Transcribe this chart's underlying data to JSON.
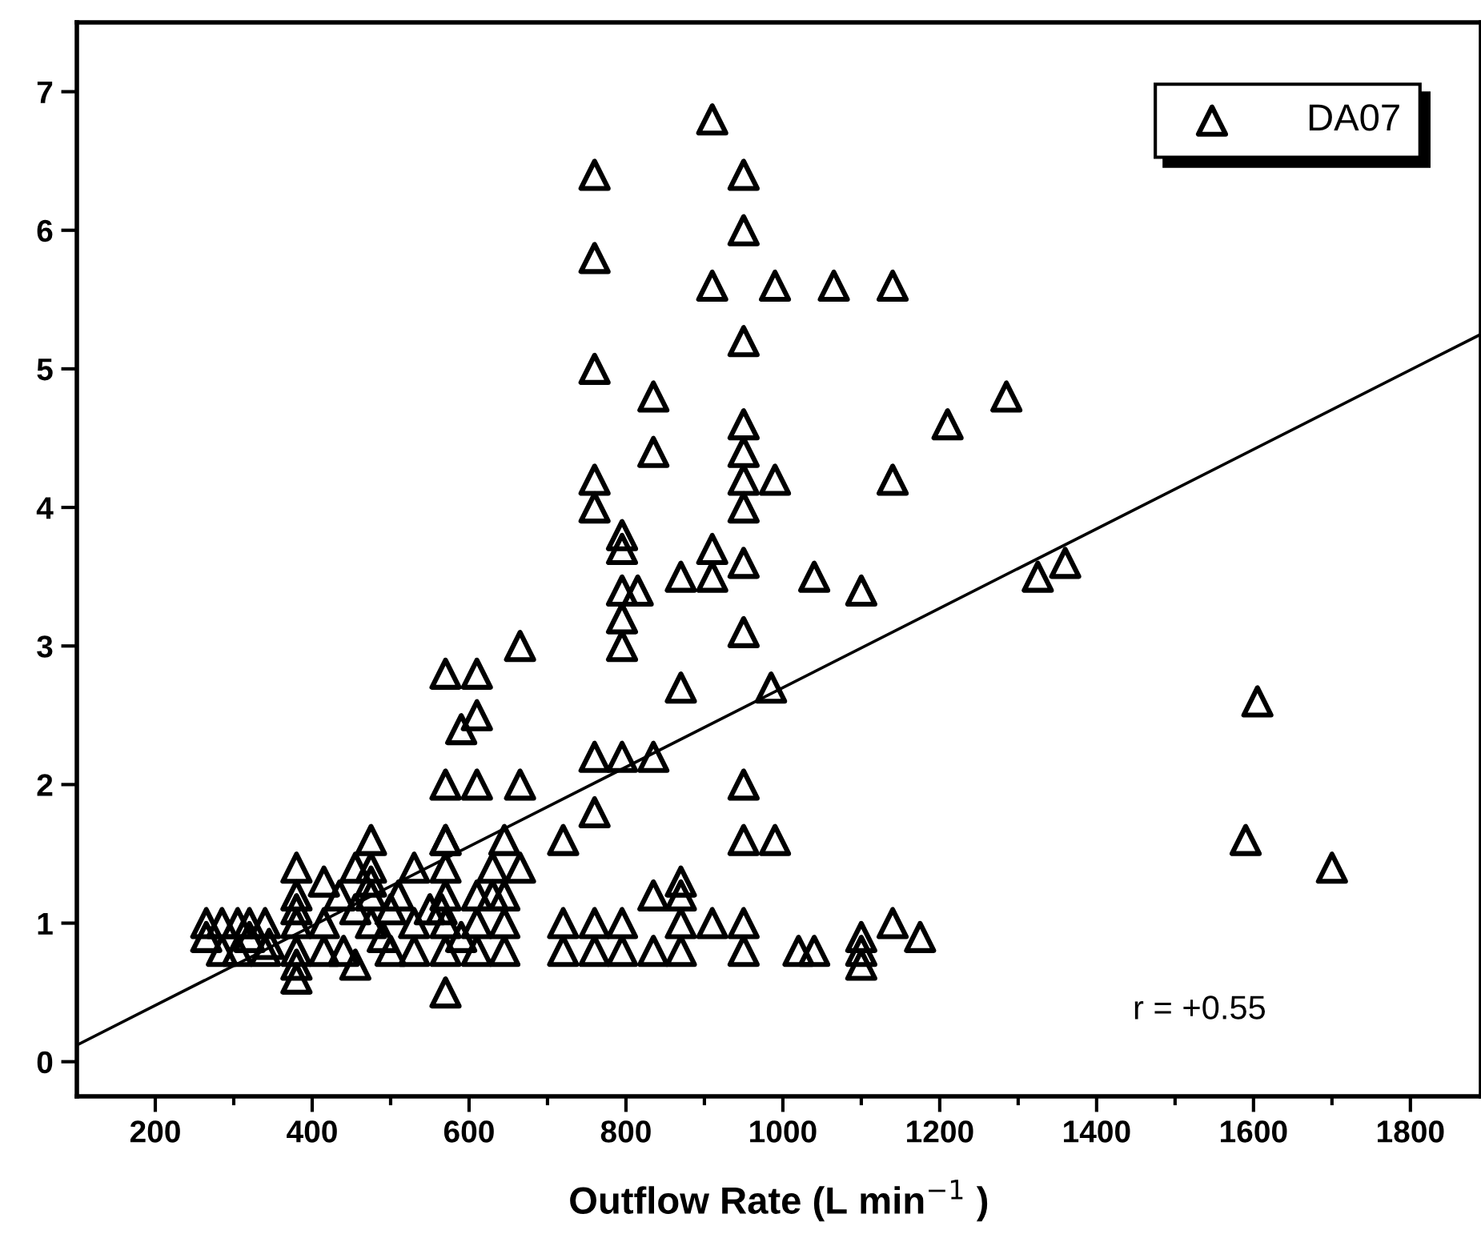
{
  "chart_data": {
    "type": "scatter",
    "xlabel": "Outflow Rate (L min$^{−1}$ )",
    "xlim": [
      100,
      1890
    ],
    "ylim": [
      -0.25,
      7.5
    ],
    "xticks": [
      200,
      {
        "value": 300,
        "label": null
      },
      400,
      {
        "value": 500,
        "label": null
      },
      600,
      {
        "value": 700,
        "label": null
      },
      800,
      {
        "value": 900,
        "label": null
      },
      1000,
      {
        "value": 1100,
        "label": null
      },
      1200,
      {
        "value": 1300,
        "label": null
      },
      1400,
      {
        "value": 1500,
        "label": null
      },
      1600,
      {
        "value": 1700,
        "label": null
      },
      1800
    ],
    "yticks": [
      0,
      1,
      2,
      3,
      4,
      5,
      6,
      7
    ],
    "grid": false,
    "legend": "top right",
    "marker": "triangle",
    "annotations": [
      "r = +0.55"
    ],
    "series": [
      {
        "name": "DA07",
        "color": "#000000",
        "x": [
          910,
          760,
          950,
          950,
          760,
          910,
          990,
          1065,
          1140,
          950,
          760,
          835,
          1285,
          950,
          1210,
          835,
          950,
          760,
          950,
          990,
          1140,
          760,
          950,
          795,
          795,
          910,
          870,
          910,
          1040,
          1325,
          1360,
          950,
          795,
          815,
          1100,
          795,
          950,
          795,
          665,
          570,
          610,
          870,
          985,
          1605,
          610,
          590,
          760,
          795,
          835,
          570,
          610,
          665,
          950,
          760,
          570,
          720,
          950,
          990,
          1590,
          1700,
          720,
          720,
          760,
          760,
          795,
          795,
          835,
          835,
          870,
          870,
          870,
          870,
          910,
          950,
          950,
          1020,
          1040,
          1100,
          1100,
          1100,
          1140,
          1175,
          570,
          265,
          265,
          285,
          285,
          305,
          305,
          320,
          320,
          340,
          345,
          380,
          380,
          380,
          380,
          380,
          380,
          380,
          415,
          415,
          415,
          435,
          455,
          455,
          455,
          475,
          475,
          475,
          475,
          475,
          490,
          510,
          500,
          530,
          530,
          530,
          550,
          570,
          570,
          570,
          570,
          570,
          590,
          610,
          610,
          610,
          630,
          630,
          645,
          645,
          645,
          645,
          665,
          565,
          500,
          440,
          340
        ],
        "values": [
          6.8,
          6.4,
          6.4,
          6.0,
          5.8,
          5.6,
          5.6,
          5.6,
          5.6,
          5.2,
          5.0,
          4.8,
          4.8,
          4.6,
          4.6,
          4.4,
          4.4,
          4.2,
          4.2,
          4.2,
          4.2,
          4.0,
          4.0,
          3.8,
          3.7,
          3.7,
          3.5,
          3.5,
          3.5,
          3.5,
          3.6,
          3.6,
          3.4,
          3.4,
          3.4,
          3.2,
          3.1,
          3.0,
          3.0,
          2.8,
          2.8,
          2.7,
          2.7,
          2.6,
          2.5,
          2.4,
          2.2,
          2.2,
          2.2,
          2.0,
          2.0,
          2.0,
          2.0,
          1.8,
          1.6,
          1.6,
          1.6,
          1.6,
          1.6,
          1.4,
          1.0,
          0.8,
          1.0,
          0.8,
          1.0,
          0.8,
          0.8,
          1.2,
          1.0,
          0.8,
          1.2,
          1.3,
          1.0,
          1.0,
          0.8,
          0.8,
          0.8,
          0.9,
          0.8,
          0.7,
          1.0,
          0.9,
          0.5,
          1.0,
          0.9,
          1.0,
          0.8,
          1.0,
          0.8,
          1.0,
          0.9,
          1.0,
          0.85,
          1.4,
          1.2,
          1.1,
          1.0,
          0.8,
          0.7,
          0.6,
          1.3,
          1.0,
          0.8,
          1.2,
          1.4,
          1.1,
          0.7,
          1.6,
          1.4,
          1.3,
          1.2,
          1.0,
          0.9,
          1.2,
          1.1,
          1.4,
          1.0,
          0.8,
          1.1,
          1.6,
          1.4,
          1.2,
          1.0,
          0.8,
          0.9,
          1.2,
          1.0,
          0.8,
          1.4,
          1.2,
          1.6,
          1.2,
          1.0,
          0.8,
          1.4,
          1.1,
          0.8,
          0.8,
          0.8
        ]
      },
      {
        "type": "line",
        "color": "#000000",
        "marker": "none",
        "x": [
          100,
          1890
        ],
        "values": [
          0.12,
          5.25
        ]
      }
    ]
  }
}
